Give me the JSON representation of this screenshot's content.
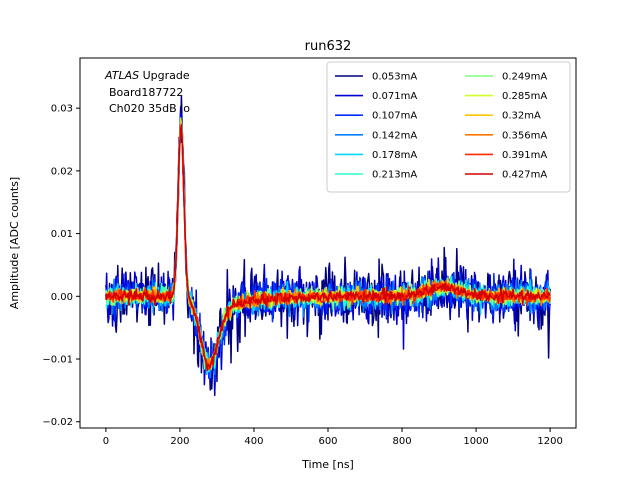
{
  "chart_data": {
    "type": "line",
    "title": "run632",
    "xlabel": "Time [ns]",
    "ylabel": "Amplitude [ADC counts]",
    "xlim": [
      -70,
      1270
    ],
    "ylim": [
      -0.021,
      0.038
    ],
    "x_ticks": [
      0,
      200,
      400,
      600,
      800,
      1000,
      1200
    ],
    "y_ticks": [
      -0.02,
      -0.01,
      0.0,
      0.01,
      0.02,
      0.03
    ],
    "x_tick_labels": [
      "0",
      "200",
      "400",
      "600",
      "800",
      "1000",
      "1200"
    ],
    "y_tick_labels": [
      "−0.02",
      "−0.01",
      "0.00",
      "0.01",
      "0.02",
      "0.03"
    ],
    "grid": false,
    "legend_position": "top-right",
    "legend_columns": 2,
    "annotation": {
      "line1_italic": "ATLAS",
      "line1_rest": " Upgrade",
      "line2": "Board187722",
      "line3": "Ch020 35dB lo"
    },
    "x_range": [
      0,
      1200
    ],
    "series": [
      {
        "name": "0.053mA",
        "color": "#00007f",
        "noise": 0.0032,
        "peak": 0.0285,
        "undershoot": -0.0115,
        "bump": 0.0012
      },
      {
        "name": "0.071mA",
        "color": "#0000d5",
        "noise": 0.0026,
        "peak": 0.0283,
        "undershoot": -0.0115,
        "bump": 0.0012
      },
      {
        "name": "0.107mA",
        "color": "#0030ff",
        "noise": 0.0018,
        "peak": 0.028,
        "undershoot": -0.0113,
        "bump": 0.0013
      },
      {
        "name": "0.142mA",
        "color": "#0080ff",
        "noise": 0.0014,
        "peak": 0.0278,
        "undershoot": -0.0112,
        "bump": 0.0013
      },
      {
        "name": "0.178mA",
        "color": "#00d4ff",
        "noise": 0.0011,
        "peak": 0.0276,
        "undershoot": -0.0111,
        "bump": 0.0014
      },
      {
        "name": "0.213mA",
        "color": "#29ffce",
        "noise": 0.0009,
        "peak": 0.0275,
        "undershoot": -0.011,
        "bump": 0.0014
      },
      {
        "name": "0.249mA",
        "color": "#7dff7a",
        "noise": 0.0008,
        "peak": 0.0274,
        "undershoot": -0.011,
        "bump": 0.0014
      },
      {
        "name": "0.285mA",
        "color": "#ceff29",
        "noise": 0.0007,
        "peak": 0.0273,
        "undershoot": -0.0109,
        "bump": 0.0015
      },
      {
        "name": "0.32mA",
        "color": "#ffc400",
        "noise": 0.0007,
        "peak": 0.0272,
        "undershoot": -0.0109,
        "bump": 0.0015
      },
      {
        "name": "0.356mA",
        "color": "#ff7700",
        "noise": 0.0006,
        "peak": 0.0272,
        "undershoot": -0.0109,
        "bump": 0.0015
      },
      {
        "name": "0.391mA",
        "color": "#ff2900",
        "noise": 0.0006,
        "peak": 0.0271,
        "undershoot": -0.0108,
        "bump": 0.0015
      },
      {
        "name": "0.427mA",
        "color": "#d50000",
        "noise": 0.0006,
        "peak": 0.027,
        "undershoot": -0.0108,
        "bump": 0.0015
      }
    ]
  }
}
